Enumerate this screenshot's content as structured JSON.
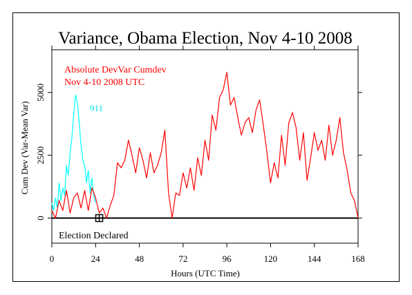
{
  "chart_data": {
    "type": "line",
    "title": "Variance, Obama Election, Nov 4-10 2008",
    "xlabel": "Hours (UTC Time)",
    "ylabel": "Cum Dev (Var-Mean Var)",
    "xlim": [
      0,
      168
    ],
    "ylim": [
      -1000,
      6700
    ],
    "x_ticks": [
      "0",
      "24",
      "48",
      "72",
      "96",
      "120",
      "144",
      "168"
    ],
    "y_ticks": [
      "0",
      "2500",
      "5000"
    ],
    "legend": [
      "Absolute DevVar Cumdev",
      "Nov 4-10 2008 UTC"
    ],
    "annotations": {
      "event_label": "Election Declared",
      "event_hour": 26,
      "comparison_label": "911"
    },
    "colors": {
      "main": "#ff0000",
      "comparison": "#00ffff",
      "axis": "#000000"
    },
    "series": [
      {
        "name": "Absolute DevVar Cumdev",
        "x": [
          0,
          2,
          4,
          6,
          8,
          10,
          12,
          14,
          16,
          18,
          20,
          22,
          24,
          26,
          28,
          30,
          32,
          34,
          36,
          38,
          40,
          42,
          44,
          46,
          48,
          50,
          52,
          54,
          56,
          58,
          60,
          62,
          64,
          66,
          68,
          70,
          72,
          74,
          76,
          78,
          80,
          82,
          84,
          86,
          88,
          90,
          92,
          94,
          96,
          98,
          100,
          102,
          104,
          106,
          108,
          110,
          112,
          114,
          116,
          118,
          120,
          122,
          124,
          126,
          128,
          130,
          132,
          134,
          136,
          138,
          140,
          142,
          144,
          146,
          148,
          150,
          152,
          154,
          156,
          158,
          160,
          162,
          164,
          166,
          168
        ],
        "y": [
          300,
          0,
          700,
          300,
          1100,
          200,
          800,
          1000,
          400,
          1100,
          300,
          1200,
          800,
          200,
          400,
          0,
          500,
          900,
          2200,
          2000,
          2300,
          3100,
          2500,
          1800,
          2800,
          2300,
          1600,
          2600,
          1800,
          2100,
          2600,
          3500,
          1000,
          0,
          1000,
          900,
          1800,
          1200,
          2000,
          1100,
          2400,
          1700,
          3100,
          2300,
          4100,
          3500,
          4800,
          5100,
          5800,
          4500,
          4800,
          4000,
          3300,
          3800,
          4000,
          3400,
          4300,
          4700,
          3700,
          2600,
          1400,
          2200,
          1600,
          3300,
          2100,
          3800,
          4200,
          3600,
          2300,
          3400,
          1500,
          2400,
          3400,
          2700,
          3100,
          2300,
          3700,
          2500,
          3100,
          4000,
          2600,
          1900,
          1000,
          700,
          0
        ]
      },
      {
        "name": "911",
        "x": [
          0,
          1,
          2,
          3,
          4,
          5,
          6,
          7,
          8,
          9,
          10,
          11,
          12,
          13,
          14,
          15,
          16,
          17,
          18,
          19,
          20,
          21,
          22,
          23,
          24
        ],
        "y": [
          600,
          300,
          800,
          400,
          1400,
          700,
          1200,
          900,
          2100,
          1700,
          2600,
          3200,
          4100,
          4900,
          4600,
          3800,
          2900,
          2300,
          2100,
          1400,
          1900,
          1000,
          1600,
          900,
          600
        ]
      }
    ]
  }
}
